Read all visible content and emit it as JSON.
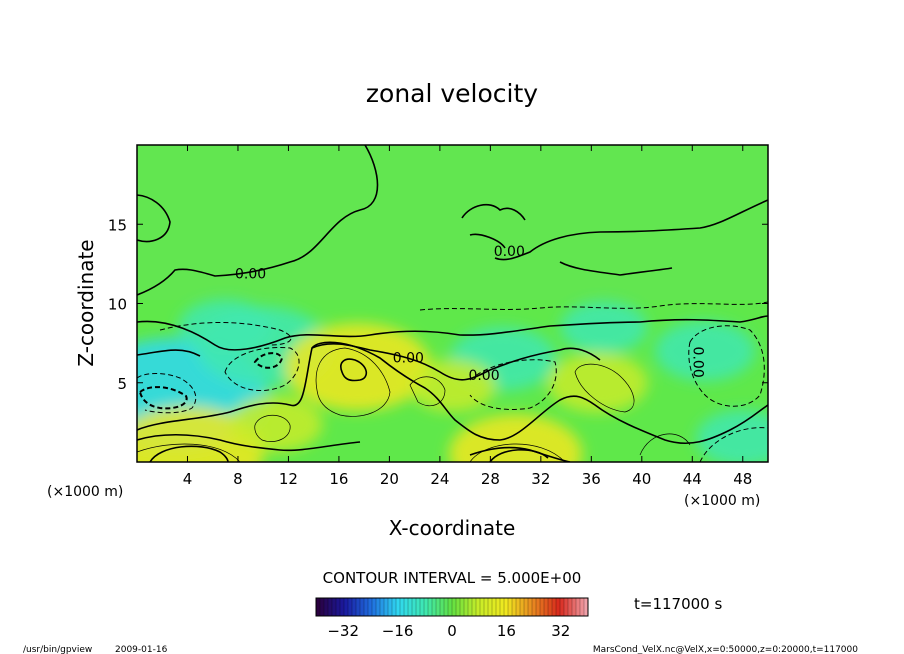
{
  "chart_data": {
    "type": "heatmap",
    "title": "zonal velocity",
    "xlabel": "X-coordinate",
    "ylabel": "Z-coordinate",
    "x_unit_label": "(×1000 m)",
    "y_unit_label": "(×1000 m)",
    "xlim": [
      0,
      50
    ],
    "ylim": [
      0,
      20
    ],
    "x_ticks": [
      4,
      8,
      12,
      16,
      20,
      24,
      28,
      32,
      36,
      40,
      44,
      48
    ],
    "y_ticks": [
      5,
      10,
      15
    ],
    "contour_interval_text": "CONTOUR INTERVAL = 5.000E+00",
    "contour_labels": [
      {
        "text": "0.00",
        "x": 9.0,
        "z": 11.9
      },
      {
        "text": "0.00",
        "x": 29.5,
        "z": 13.3
      },
      {
        "text": "0.00",
        "x": 21.5,
        "z": 6.6
      },
      {
        "text": "0.00",
        "x": 27.5,
        "z": 5.5
      },
      {
        "text": "0.00",
        "x": 44.5,
        "z": 6.3
      }
    ],
    "colorbar": {
      "min": -40,
      "max": 40,
      "ticks": [
        -32,
        -16,
        0,
        16,
        32
      ],
      "colorscale": [
        "#2a0040",
        "#1a1aa0",
        "#1f6fe0",
        "#30d8f0",
        "#3fe8b0",
        "#62e042",
        "#c8ec28",
        "#f0e820",
        "#e88a20",
        "#d8281c",
        "#f0a0a8"
      ]
    },
    "features": [
      {
        "kind": "negative",
        "x": 3.0,
        "z": 4.3,
        "value": -20
      },
      {
        "kind": "negative",
        "x": 10.0,
        "z": 7.3,
        "value": -12
      },
      {
        "kind": "negative",
        "x": 7.0,
        "z": 8.5,
        "value": -6
      },
      {
        "kind": "negative",
        "x": 29.0,
        "z": 6.5,
        "value": -8
      },
      {
        "kind": "negative",
        "x": 45.0,
        "z": 7.0,
        "value": -7
      },
      {
        "kind": "negative",
        "x": 48.0,
        "z": 1.5,
        "value": -6
      },
      {
        "kind": "negative",
        "x": 37.0,
        "z": 8.5,
        "value": -5
      },
      {
        "kind": "positive",
        "x": 17.5,
        "z": 6.0,
        "value": 14
      },
      {
        "kind": "positive",
        "x": 4.0,
        "z": 0.6,
        "value": 15
      },
      {
        "kind": "positive",
        "x": 30.0,
        "z": 0.5,
        "value": 12
      },
      {
        "kind": "positive",
        "x": 36.5,
        "z": 5.0,
        "value": 7
      },
      {
        "kind": "positive",
        "x": 11.0,
        "z": 2.4,
        "value": 6
      },
      {
        "kind": "positive",
        "x": 25.0,
        "z": 4.8,
        "value": 5
      }
    ]
  },
  "footer": {
    "program": "/usr/bin/gpview",
    "date": "2009-01-16",
    "time_label": "t=117000 s",
    "source": "MarsCond_VelX.nc@VelX,x=0:50000,z=0:20000,t=117000"
  }
}
